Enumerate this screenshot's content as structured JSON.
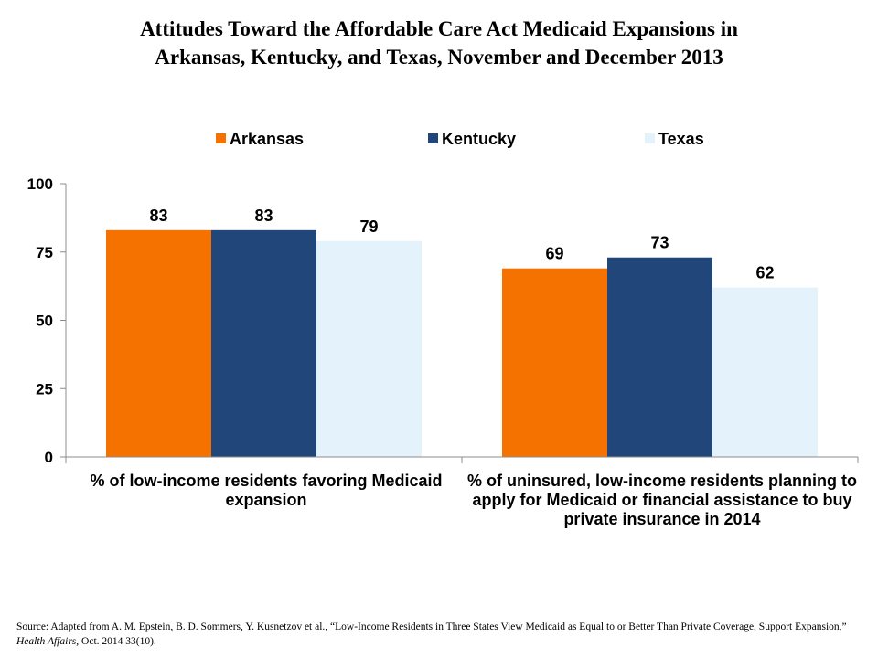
{
  "title_lines": [
    "Attitudes Toward the Affordable Care Act Medicaid Expansions in",
    "Arkansas, Kentucky, and Texas, November and December 2013"
  ],
  "source": {
    "before": "Source: Adapted from A. M. Epstein, B. D. Sommers, Y. Kusnetzov et al., “Low-Income Residents in Three States View Medicaid as Equal to or Better Than Private Coverage, Support Expansion,” ",
    "journal": "Health Affairs,",
    "after": " Oct. 2014 33(10)."
  },
  "chart_data": {
    "type": "bar",
    "title": "",
    "xlabel": "",
    "ylabel": "",
    "ylim": [
      0,
      100
    ],
    "yticks": [
      "0",
      "25",
      "50",
      "75",
      "100"
    ],
    "categories": [
      "% of low-income residents favoring Medicaid expansion",
      "% of uninsured, low-income residents planning to apply for Medicaid or financial assistance to buy private insurance in 2014"
    ],
    "series": [
      {
        "name": "Arkansas",
        "color": "#F57200",
        "values": [
          83,
          69
        ]
      },
      {
        "name": "Kentucky",
        "color": "#21477A",
        "values": [
          83,
          73
        ]
      },
      {
        "name": "Texas",
        "color": "#E3F2FB",
        "values": [
          79,
          62
        ]
      }
    ],
    "legend_position": "top",
    "grid": false,
    "data_labels": true
  }
}
